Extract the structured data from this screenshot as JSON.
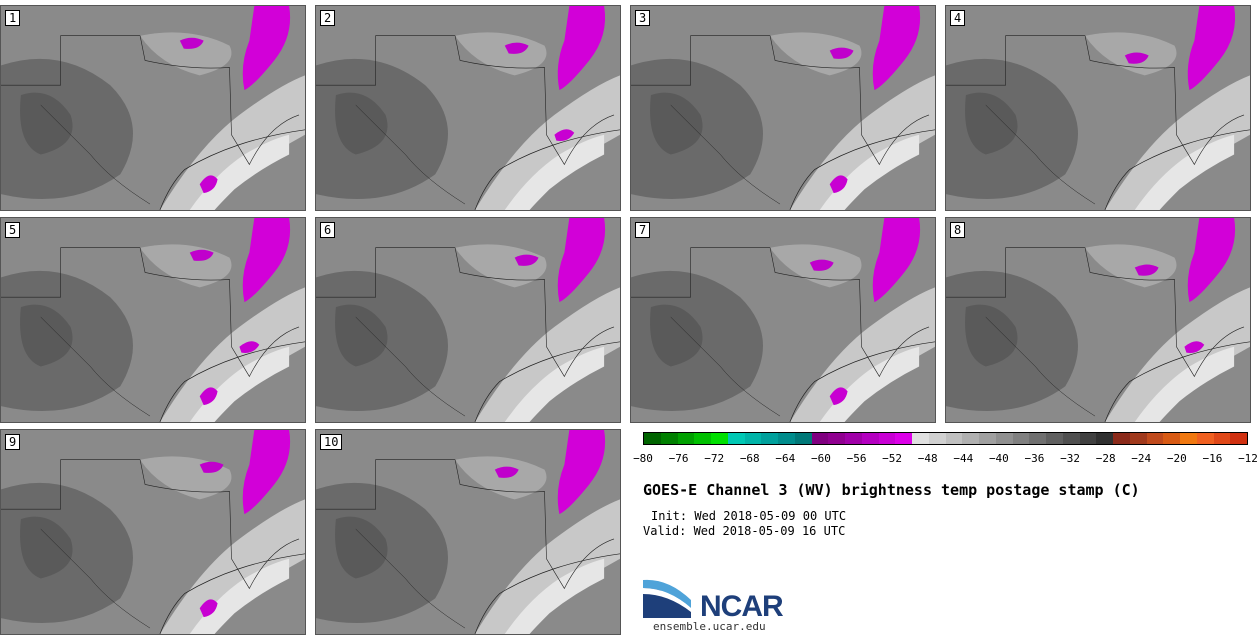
{
  "panels": [
    {
      "label": "1"
    },
    {
      "label": "2"
    },
    {
      "label": "3"
    },
    {
      "label": "4"
    },
    {
      "label": "5"
    },
    {
      "label": "6"
    },
    {
      "label": "7"
    },
    {
      "label": "8"
    },
    {
      "label": "9"
    },
    {
      "label": "10"
    }
  ],
  "colorbar": {
    "ticks": [
      "−80",
      "−76",
      "−72",
      "−68",
      "−64",
      "−60",
      "−56",
      "−52",
      "−48",
      "−44",
      "−40",
      "−36",
      "−32",
      "−28",
      "−24",
      "−20",
      "−16",
      "−12"
    ],
    "colors": [
      "#006400",
      "#008000",
      "#00a000",
      "#00c000",
      "#00e000",
      "#00c8b4",
      "#00b4a8",
      "#00a09c",
      "#008c8c",
      "#007878",
      "#800080",
      "#900090",
      "#a000a8",
      "#b400c0",
      "#c800d4",
      "#dc00e8",
      "#e0e0e0",
      "#d0d0d0",
      "#c0c0c0",
      "#b0b0b0",
      "#a0a0a0",
      "#909090",
      "#808080",
      "#707070",
      "#606060",
      "#505050",
      "#404040",
      "#303030",
      "#8b2a1a",
      "#a0391c",
      "#c04a1c",
      "#d85a14",
      "#f07810",
      "#f06020",
      "#e04818",
      "#d03010"
    ]
  },
  "title": "GOES-E Channel 3 (WV) brightness temp postage stamp (C)",
  "init": "Init: Wed 2018-05-09 00 UTC",
  "valid": "Valid: Wed 2018-05-09 16 UTC",
  "logo": {
    "text": "NCAR",
    "site": "ensemble.ucar.edu"
  }
}
